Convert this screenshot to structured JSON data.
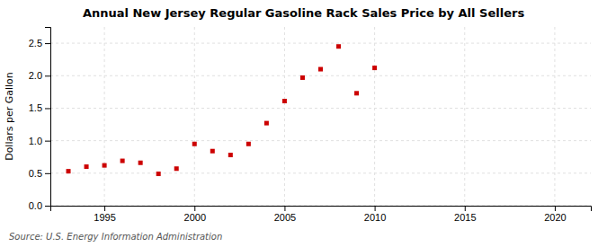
{
  "chart_data": {
    "type": "scatter",
    "title": "Annual New Jersey Regular Gasoline Rack Sales Price by All Sellers",
    "ylabel": "Dollars per Gallon",
    "annotations": [
      "Source: U.S. Energy Information Administration"
    ],
    "x": [
      1993,
      1994,
      1995,
      1996,
      1997,
      1998,
      1999,
      2000,
      2001,
      2002,
      2003,
      2004,
      2005,
      2006,
      2007,
      2008,
      2009,
      2010
    ],
    "values": [
      0.53,
      0.6,
      0.62,
      0.69,
      0.66,
      0.49,
      0.57,
      0.95,
      0.84,
      0.78,
      0.95,
      1.27,
      1.61,
      1.97,
      2.1,
      2.45,
      1.73,
      2.12
    ],
    "color": "#cc0000",
    "marker": "square",
    "xlim": [
      1992,
      2022
    ],
    "ylim": [
      0.0,
      2.75
    ],
    "xticks": [
      1995,
      2000,
      2005,
      2010,
      2015,
      2020
    ],
    "yticks": [
      {
        "value": 0.0,
        "label": "0.0"
      },
      0.5,
      {
        "value": 1.0,
        "label": "1.0"
      },
      1.5,
      {
        "value": 2.0,
        "label": "2.0"
      },
      2.5
    ],
    "grid": true
  }
}
